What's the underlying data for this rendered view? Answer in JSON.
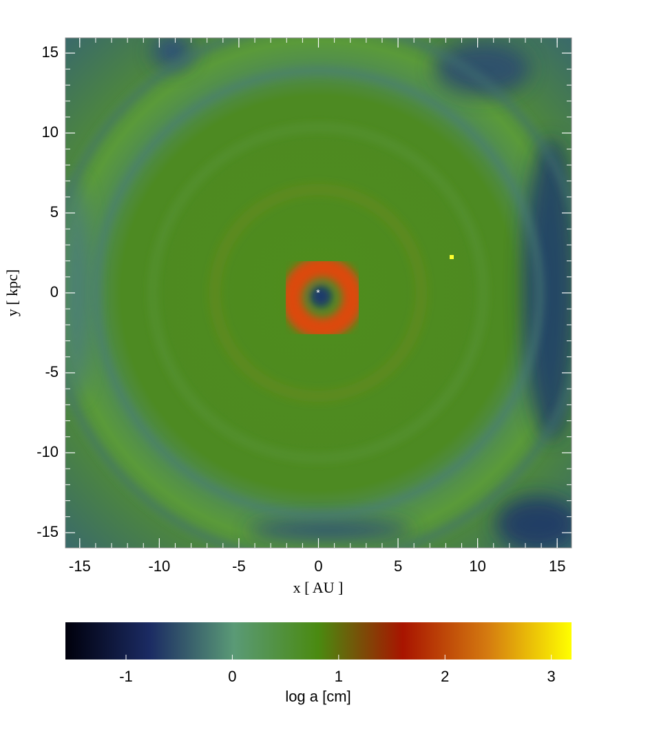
{
  "chart_data": {
    "type": "heatmap",
    "xlabel": "x [ AU ]",
    "ylabel": "y [ kpc]",
    "xlim": [
      -15.9,
      15.9
    ],
    "ylim": [
      -15.95,
      15.95
    ],
    "xticks": [
      -15,
      -10,
      -5,
      0,
      5,
      10,
      15
    ],
    "yticks": [
      -15,
      -10,
      -5,
      0,
      5,
      10,
      15
    ],
    "grid": false,
    "colorbar": {
      "label": "log a [cm]",
      "lim": [
        -1.57,
        3.19
      ],
      "ticks": [
        -1,
        0,
        1,
        2,
        3
      ],
      "colors": [
        "#00000c",
        "#1b2b63",
        "#5a9a76",
        "#4a8a10",
        "#a81400",
        "#d47a10",
        "#ffff00"
      ]
    }
  }
}
